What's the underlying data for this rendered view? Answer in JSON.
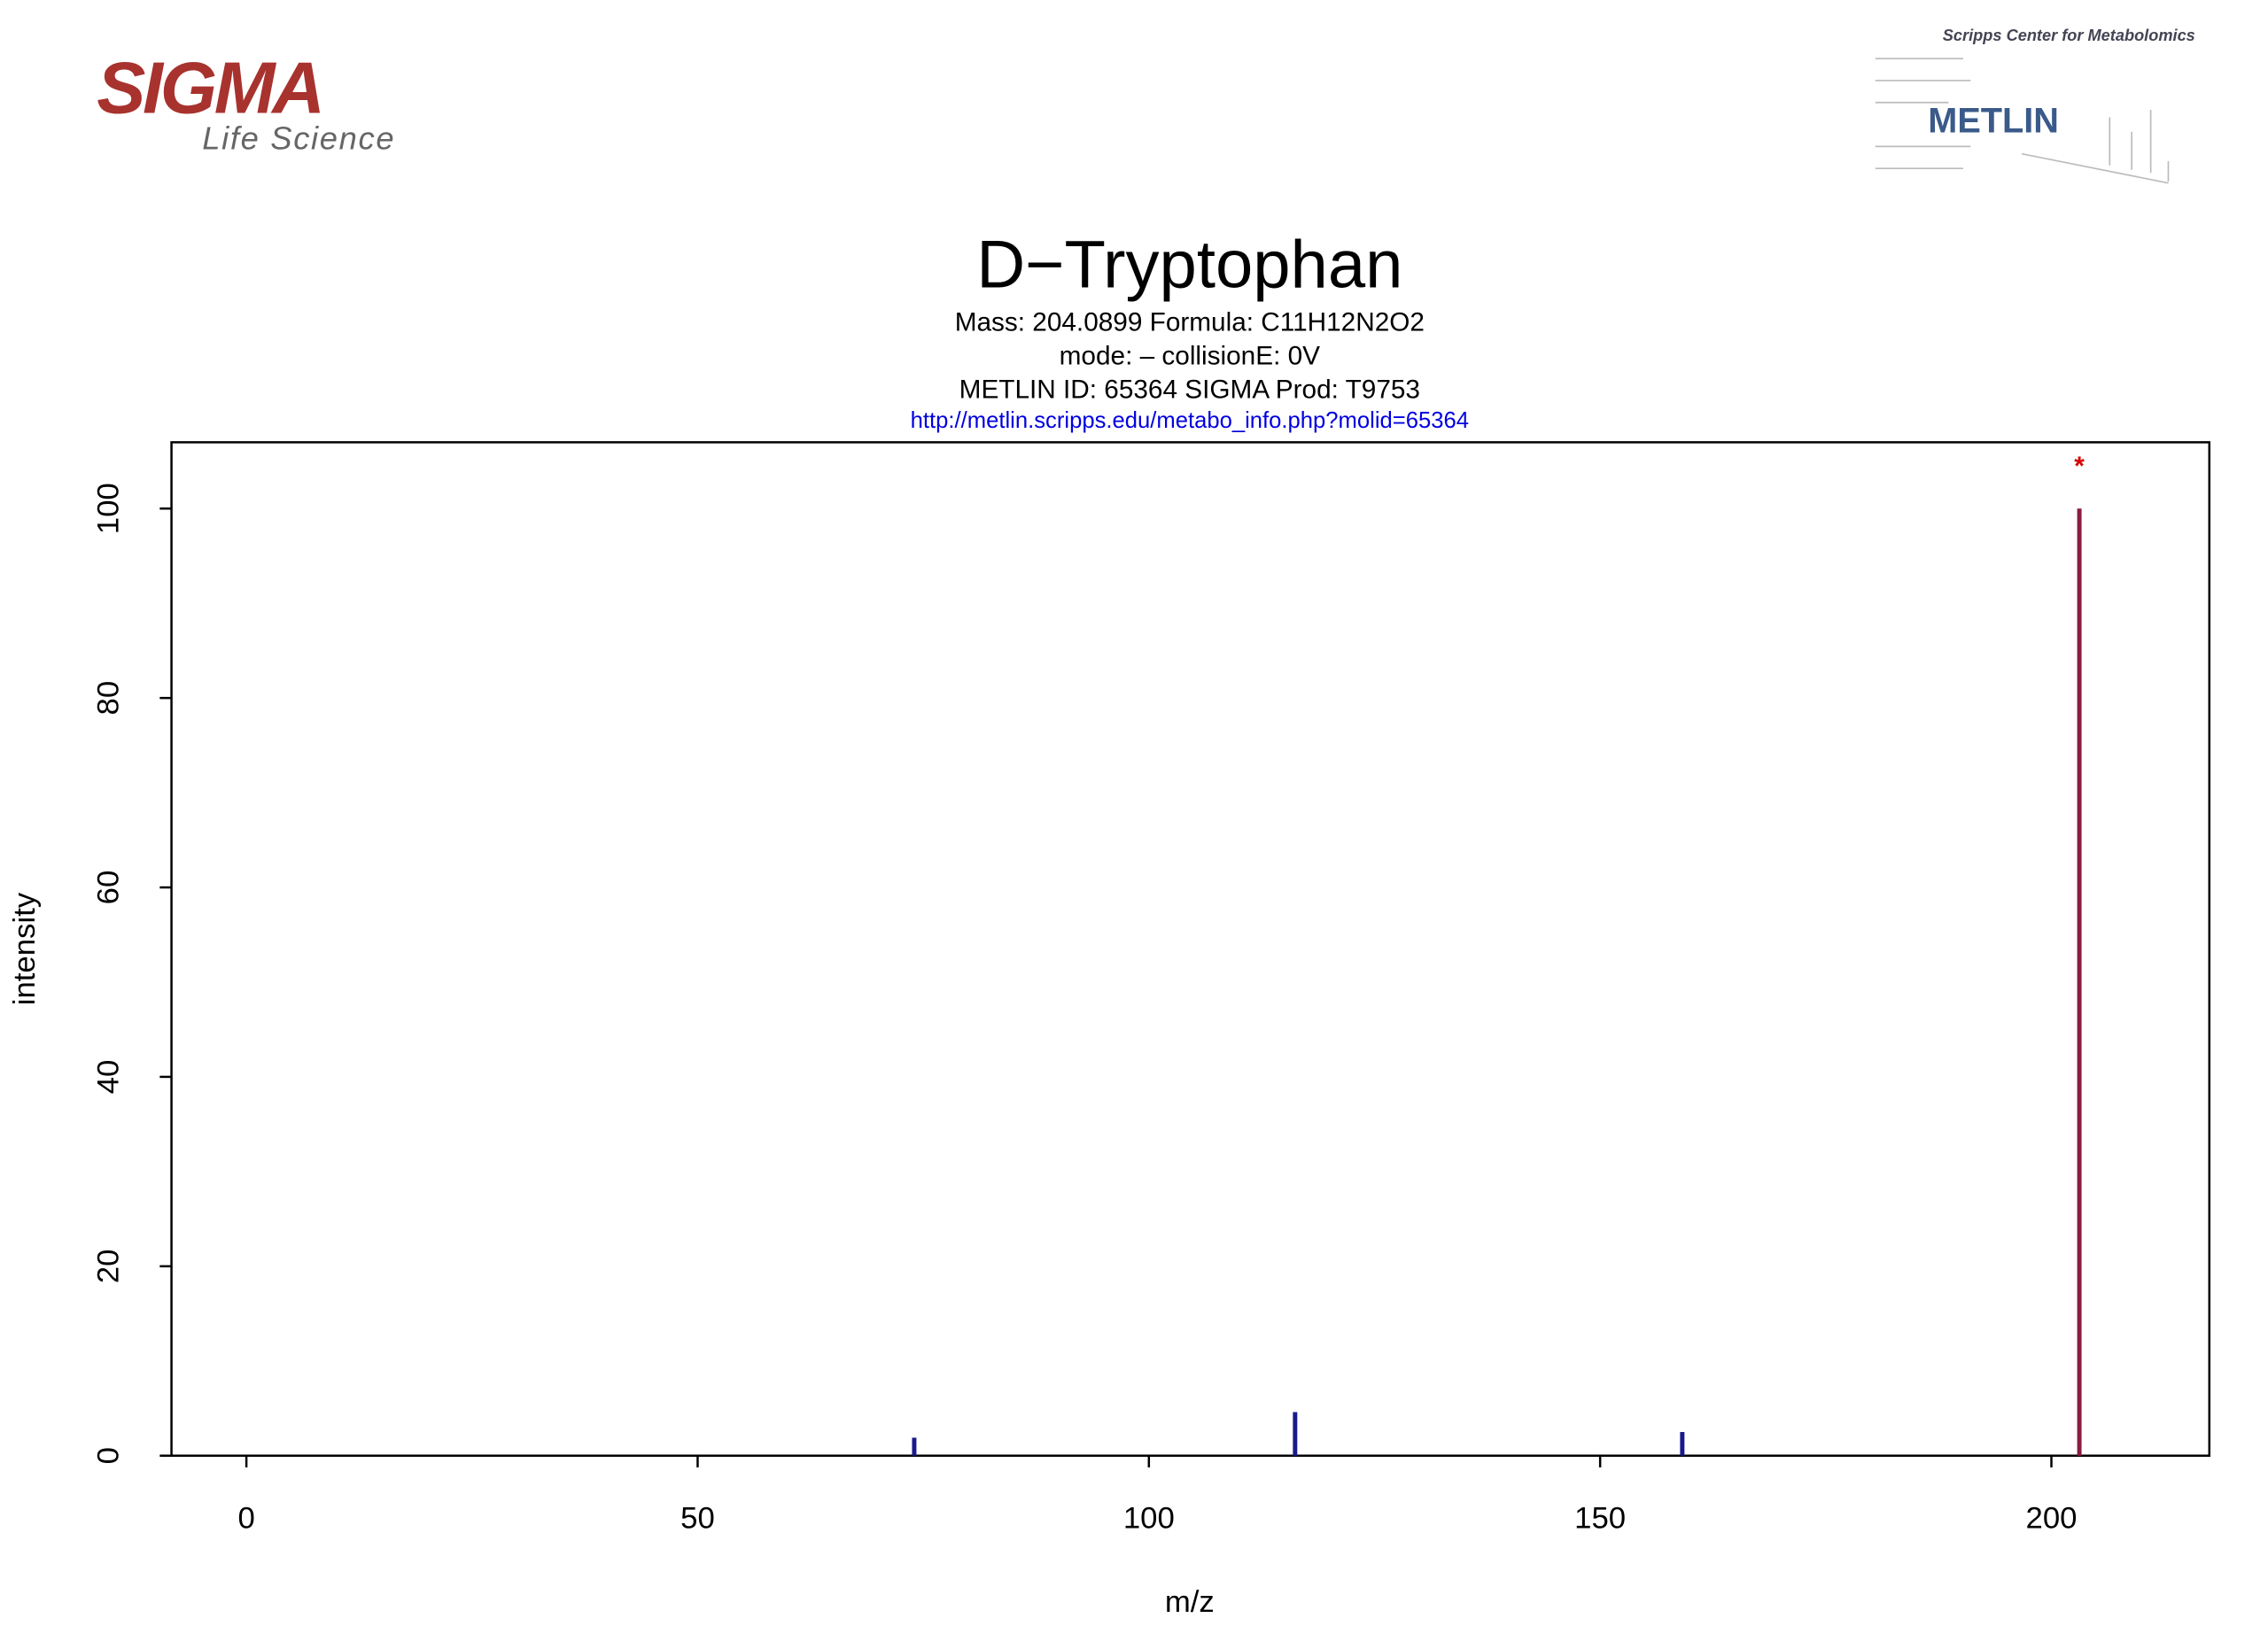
{
  "logos": {
    "left": {
      "name": "SIGMA",
      "tagline": "Life Science"
    },
    "right": {
      "caption": "Scripps Center for Metabolomics",
      "name": "METLIN"
    }
  },
  "chart_data": {
    "type": "stick",
    "title": "D−Tryptophan",
    "subtitle": [
      "Mass: 204.0899  Formula: C11H12N2O2",
      "mode: –  collisionE: 0V",
      "METLIN ID: 65364  SIGMA Prod: T9753"
    ],
    "link": "http://metlin.scripps.edu/metabo_info.php?molid=65364",
    "x_label": "m/z",
    "y_label": "intensity",
    "x": [
      74.0,
      116.2,
      159.1,
      203.1
    ],
    "values": [
      1.9,
      4.6,
      2.5,
      100
    ],
    "colors": [
      "#1a1a8c",
      "#1a1a8c",
      "#1a1a8c",
      "#8b1a44"
    ],
    "annotation": {
      "text": "*",
      "color": "#d40000",
      "point": 3
    },
    "xlim": [
      -8.3,
      217.5
    ],
    "ylim": [
      0,
      107
    ],
    "xticks": [
      0,
      50,
      100,
      150,
      200
    ],
    "yticks": [
      0,
      20,
      40,
      60,
      80,
      100
    ]
  }
}
